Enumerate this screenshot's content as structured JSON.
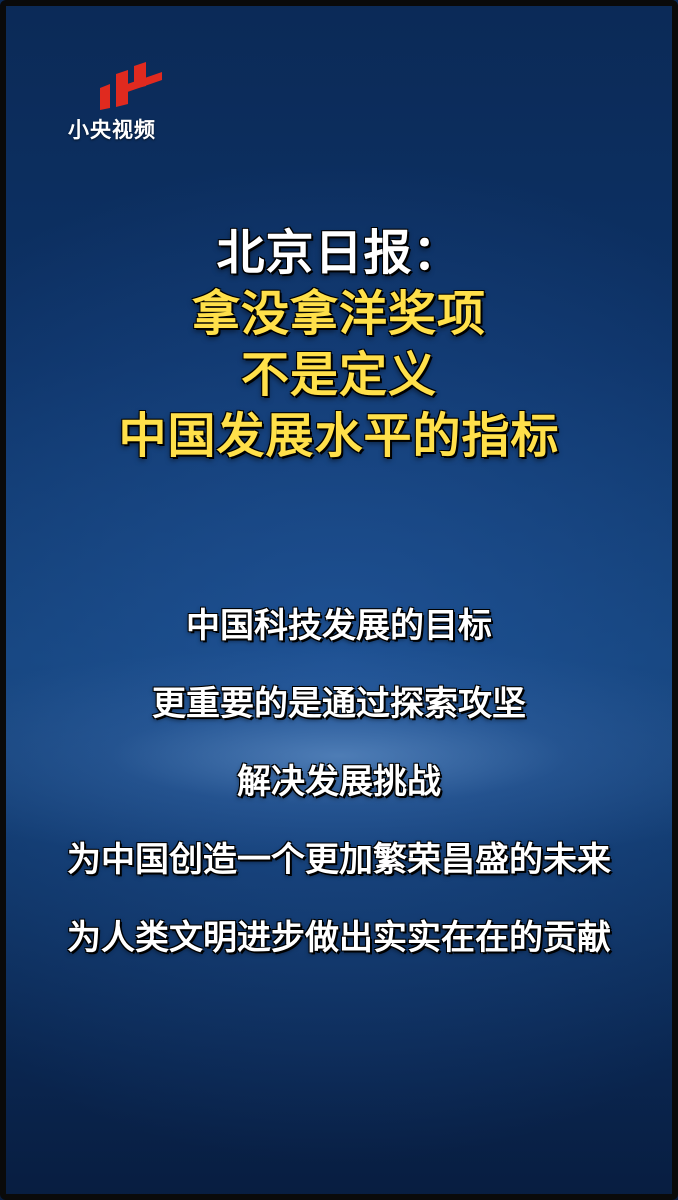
{
  "logo": {
    "text": "小央视频",
    "icon": "xiaoyang-video-logo-icon",
    "color": "#e02a1f"
  },
  "headline": {
    "source": "北京日报：",
    "lines": [
      "拿没拿洋奖项",
      "不是定义",
      "中国发展水平的指标"
    ]
  },
  "body": {
    "lines": [
      "中国科技发展的目标",
      "更重要的是通过探索攻坚",
      "解决发展挑战",
      "为中国创造一个更加繁荣昌盛的未来",
      "为人类文明进步做出实实在在的贡献"
    ]
  },
  "colors": {
    "background": "#134178",
    "headline_accent": "#ffe04a",
    "text": "#ffffff"
  }
}
